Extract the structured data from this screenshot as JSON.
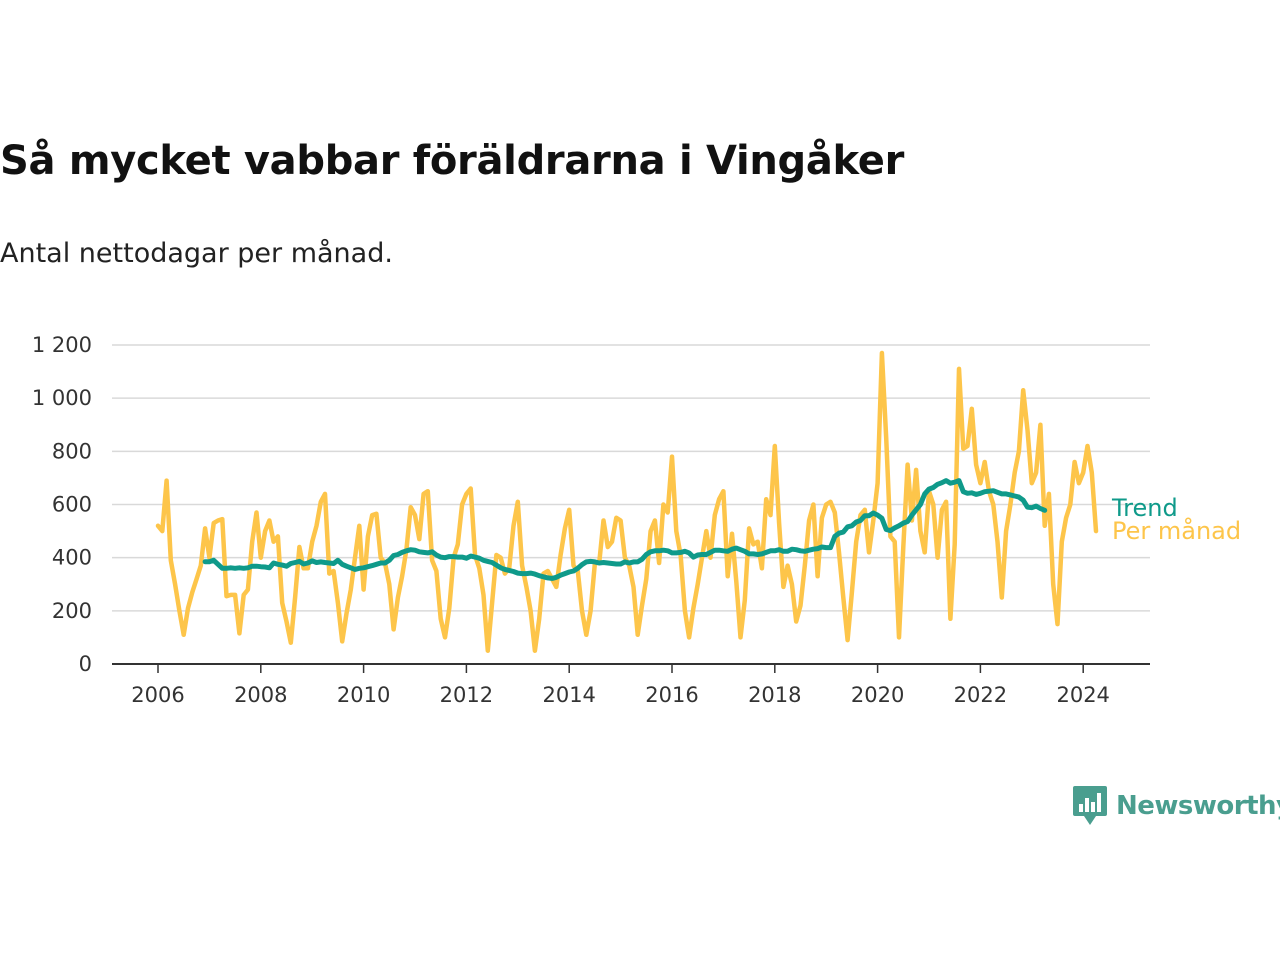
{
  "title": "Så mycket vabbar föräldrarna i Vingåker",
  "subtitle": "Antal nettodagar per månad.",
  "brand": {
    "name": "Newsworthy",
    "icon": "bar-chart-speech-bubble-icon",
    "color": "#4a9e8f"
  },
  "chart_data": {
    "type": "line",
    "title": "Så mycket vabbar föräldrarna i Vingåker",
    "subtitle": "Antal nettodagar per månad.",
    "xlabel": "",
    "ylabel": "",
    "xlim": [
      "2006-01",
      "2024-05"
    ],
    "ylim": [
      0,
      1200
    ],
    "x_ticks": [
      "2006",
      "2008",
      "2010",
      "2012",
      "2014",
      "2016",
      "2018",
      "2020",
      "2022",
      "2024"
    ],
    "y_ticks": [
      0,
      200,
      400,
      600,
      800,
      1000,
      1200
    ],
    "y_tick_labels": [
      "0",
      "200",
      "400",
      "600",
      "800",
      "1 000",
      "1 200"
    ],
    "grid": "horizontal",
    "legend": "end-of-line labels",
    "series": [
      {
        "name": "Per månad",
        "color": "#fdc54a",
        "start": "2006-01",
        "values": [
          520,
          500,
          690,
          390,
          300,
          200,
          110,
          210,
          270,
          320,
          370,
          510,
          400,
          530,
          540,
          545,
          255,
          260,
          260,
          115,
          260,
          280,
          460,
          570,
          400,
          500,
          540,
          460,
          480,
          230,
          160,
          80,
          250,
          440,
          360,
          360,
          460,
          520,
          610,
          640,
          340,
          350,
          230,
          85,
          190,
          280,
          400,
          520,
          280,
          480,
          560,
          565,
          400,
          380,
          300,
          130,
          250,
          330,
          430,
          590,
          560,
          470,
          640,
          650,
          390,
          350,
          170,
          100,
          210,
          400,
          450,
          600,
          640,
          660,
          410,
          360,
          260,
          50,
          230,
          410,
          400,
          340,
          360,
          520,
          610,
          370,
          290,
          200,
          50,
          170,
          340,
          350,
          320,
          290,
          410,
          510,
          580,
          370,
          350,
          200,
          110,
          200,
          380,
          380,
          540,
          440,
          460,
          550,
          540,
          400,
          370,
          290,
          110,
          220,
          320,
          500,
          540,
          380,
          600,
          570,
          780,
          500,
          410,
          200,
          100,
          210,
          300,
          400,
          500,
          400,
          560,
          620,
          650,
          330,
          490,
          310,
          100,
          240,
          510,
          450,
          460,
          360,
          620,
          560,
          820,
          530,
          290,
          370,
          300,
          160,
          220,
          370,
          540,
          600,
          330,
          550,
          600,
          610,
          570,
          420,
          250,
          90,
          270,
          460,
          560,
          580,
          420,
          540,
          680,
          1170,
          850,
          480,
          460,
          100,
          440,
          750,
          540,
          730,
          500,
          420,
          650,
          600,
          400,
          580,
          610,
          170,
          450,
          1110,
          810,
          820,
          960,
          750,
          680,
          760,
          650,
          600,
          460,
          250,
          500,
          600,
          720,
          800,
          1030,
          880,
          680,
          720,
          900,
          520,
          640,
          300,
          150,
          460,
          550,
          600,
          760,
          680,
          720,
          820,
          720,
          500
        ]
      },
      {
        "name": "Trend",
        "color": "#0f9a8a",
        "start": "2006-12",
        "values": [
          385,
          385,
          390,
          375,
          360,
          360,
          362,
          360,
          362,
          360,
          362,
          368,
          368,
          366,
          365,
          362,
          380,
          375,
          372,
          368,
          378,
          382,
          386,
          376,
          380,
          388,
          382,
          384,
          382,
          380,
          378,
          390,
          375,
          368,
          362,
          356,
          360,
          362,
          366,
          370,
          375,
          380,
          380,
          390,
          408,
          412,
          420,
          426,
          430,
          428,
          422,
          420,
          418,
          422,
          410,
          402,
          400,
          404,
          404,
          402,
          402,
          398,
          406,
          402,
          398,
          390,
          386,
          382,
          372,
          362,
          356,
          352,
          348,
          342,
          340,
          340,
          342,
          338,
          332,
          328,
          324,
          322,
          326,
          334,
          340,
          346,
          350,
          360,
          374,
          384,
          386,
          384,
          380,
          382,
          380,
          378,
          376,
          376,
          384,
          380,
          384,
          384,
          394,
          412,
          422,
          426,
          426,
          428,
          426,
          418,
          418,
          420,
          424,
          418,
          402,
          410,
          412,
          412,
          420,
          428,
          428,
          426,
          424,
          432,
          436,
          430,
          424,
          414,
          414,
          412,
          414,
          420,
          426,
          426,
          430,
          424,
          424,
          432,
          430,
          426,
          424,
          428,
          432,
          434,
          440,
          438,
          438,
          480,
          492,
          496,
          516,
          520,
          534,
          540,
          558,
          558,
          568,
          560,
          548,
          506,
          502,
          512,
          520,
          530,
          536,
          560,
          580,
          600,
          640,
          658,
          664,
          676,
          682,
          690,
          680,
          684,
          690,
          648,
          642,
          644,
          638,
          642,
          648,
          650,
          652,
          646,
          640,
          640,
          636,
          632,
          628,
          616,
          590,
          588,
          594,
          585,
          578
        ]
      }
    ]
  }
}
